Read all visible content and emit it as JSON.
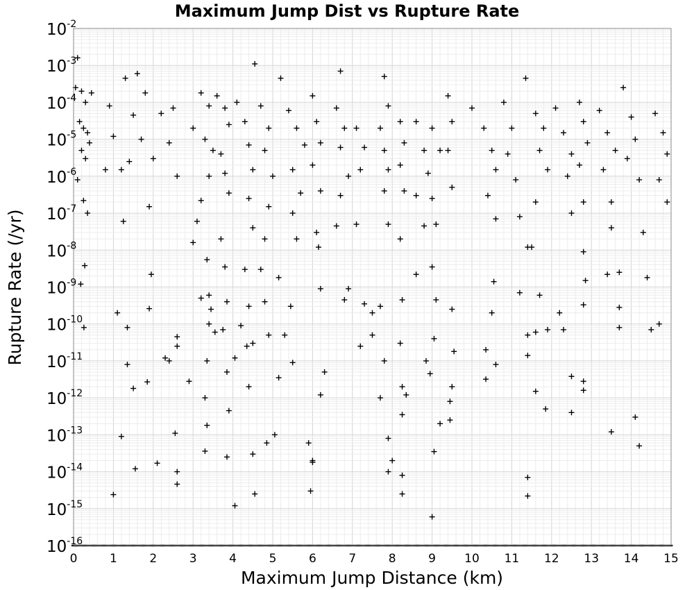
{
  "chart_data": {
    "type": "scatter",
    "title": "Maximum Jump Dist vs Rupture Rate",
    "xlabel": "Maximum Jump Distance (km)",
    "ylabel": "Rupture Rate (/yr)",
    "xlim": [
      0,
      15
    ],
    "ylim_exponents": [
      -16,
      -2
    ],
    "y_scale": "log",
    "grid": true,
    "marker": "plus",
    "marker_color": "#000000",
    "x_ticks": [
      "0",
      "1",
      "2",
      "3",
      "4",
      "5",
      "6",
      "7",
      "8",
      "9",
      "10",
      "11",
      "12",
      "13",
      "14",
      "15"
    ],
    "y_ticks": [
      {
        "base": "10",
        "exp": "-2"
      },
      {
        "base": "10",
        "exp": "-3"
      },
      {
        "base": "10",
        "exp": "-4"
      },
      {
        "base": "10",
        "exp": "-5"
      },
      {
        "base": "10",
        "exp": "-6"
      },
      {
        "base": "10",
        "exp": "-7"
      },
      {
        "base": "10",
        "exp": "-8"
      },
      {
        "base": "10",
        "exp": "-9"
      },
      {
        "base": "10",
        "exp": "-10"
      },
      {
        "base": "10",
        "exp": "-11"
      },
      {
        "base": "10",
        "exp": "-12"
      },
      {
        "base": "10",
        "exp": "-13"
      },
      {
        "base": "10",
        "exp": "-14"
      },
      {
        "base": "10",
        "exp": "-15"
      },
      {
        "base": "10",
        "exp": "-16"
      }
    ],
    "points": [
      [
        0.1,
        0.0016
      ],
      [
        0.05,
        0.00025
      ],
      [
        0.2,
        0.0002
      ],
      [
        0.3,
        0.0001
      ],
      [
        0.45,
        0.00018
      ],
      [
        0.15,
        3e-05
      ],
      [
        0.25,
        2e-05
      ],
      [
        0.35,
        1.5e-05
      ],
      [
        0.4,
        8e-06
      ],
      [
        0.2,
        5e-06
      ],
      [
        0.3,
        3e-06
      ],
      [
        0.1,
        8e-07
      ],
      [
        0.25,
        2.2e-07
      ],
      [
        0.35,
        1e-07
      ],
      [
        0.28,
        3.8e-09
      ],
      [
        0.18,
        1.2e-09
      ],
      [
        0.26,
        8e-11
      ],
      [
        0.9,
        8e-05
      ],
      [
        1.0,
        1.2e-05
      ],
      [
        0.8,
        1.5e-06
      ],
      [
        1.2,
        1.5e-06
      ],
      [
        1.3,
        0.00045
      ],
      [
        1.6,
        0.0006
      ],
      [
        1.8,
        0.00018
      ],
      [
        1.5,
        4.5e-05
      ],
      [
        1.7,
        1e-05
      ],
      [
        1.4,
        2.5e-06
      ],
      [
        1.9,
        1.5e-07
      ],
      [
        1.25,
        6e-08
      ],
      [
        1.1,
        2e-10
      ],
      [
        1.35,
        8e-11
      ],
      [
        1.35,
        8e-12
      ],
      [
        1.5,
        1.8e-12
      ],
      [
        1.2,
        9e-14
      ],
      [
        1.55,
        1.2e-14
      ],
      [
        1.0,
        2.4e-15
      ],
      [
        2.0,
        3e-06
      ],
      [
        2.2,
        5e-05
      ],
      [
        2.5,
        7e-05
      ],
      [
        2.4,
        8e-06
      ],
      [
        2.6,
        1e-06
      ],
      [
        1.95,
        2.2e-09
      ],
      [
        1.9,
        2.6e-10
      ],
      [
        1.85,
        2.7e-12
      ],
      [
        2.3,
        1.2e-11
      ],
      [
        2.1,
        1.7e-14
      ],
      [
        2.6,
        1e-14
      ],
      [
        2.4,
        1e-11
      ],
      [
        2.6,
        4.5e-11
      ],
      [
        2.6,
        2.5e-11
      ],
      [
        2.6,
        4.6e-15
      ],
      [
        2.55,
        1.1e-13
      ],
      [
        3.0,
        2e-05
      ],
      [
        3.2,
        0.00018
      ],
      [
        3.4,
        8e-05
      ],
      [
        3.3,
        1e-05
      ],
      [
        3.5,
        5e-06
      ],
      [
        3.4,
        1e-06
      ],
      [
        3.2,
        2.2e-07
      ],
      [
        3.1,
        6e-08
      ],
      [
        3.0,
        1.6e-08
      ],
      [
        3.35,
        5.5e-09
      ],
      [
        3.4,
        6e-10
      ],
      [
        3.4,
        1e-10
      ],
      [
        3.35,
        1e-11
      ],
      [
        3.3,
        1e-12
      ],
      [
        3.35,
        1.8e-13
      ],
      [
        3.3,
        3.6e-14
      ],
      [
        3.55,
        6e-11
      ],
      [
        3.45,
        2.5e-10
      ],
      [
        3.2,
        5e-10
      ],
      [
        2.9,
        2.8e-12
      ],
      [
        3.6,
        0.00015
      ],
      [
        3.8,
        7e-05
      ],
      [
        3.9,
        2.5e-05
      ],
      [
        3.7,
        4e-06
      ],
      [
        3.8,
        1.2e-06
      ],
      [
        3.9,
        3.5e-07
      ],
      [
        3.7,
        2e-08
      ],
      [
        3.8,
        3.5e-09
      ],
      [
        3.85,
        4e-10
      ],
      [
        3.75,
        7e-11
      ],
      [
        3.85,
        5e-12
      ],
      [
        3.9,
        4.5e-13
      ],
      [
        3.85,
        2.5e-14
      ],
      [
        4.05,
        1.2e-15
      ],
      [
        4.05,
        1.2e-11
      ],
      [
        4.1,
        0.0001
      ],
      [
        4.3,
        3e-05
      ],
      [
        4.4,
        7e-06
      ],
      [
        4.5,
        1.5e-06
      ],
      [
        4.4,
        2.5e-07
      ],
      [
        4.5,
        4e-08
      ],
      [
        4.3,
        3e-09
      ],
      [
        4.4,
        3e-10
      ],
      [
        4.5,
        3e-11
      ],
      [
        4.4,
        2e-12
      ],
      [
        4.5,
        3e-14
      ],
      [
        4.55,
        2.5e-15
      ],
      [
        4.55,
        0.0011
      ],
      [
        4.2,
        9e-11
      ],
      [
        4.35,
        2.5e-11
      ],
      [
        4.7,
        8e-05
      ],
      [
        4.9,
        2e-05
      ],
      [
        4.8,
        5e-06
      ],
      [
        5.0,
        1e-06
      ],
      [
        4.9,
        1.5e-07
      ],
      [
        4.8,
        2e-08
      ],
      [
        4.7,
        3e-09
      ],
      [
        4.8,
        4e-10
      ],
      [
        4.9,
        5e-11
      ],
      [
        5.15,
        3.5e-12
      ],
      [
        5.05,
        1e-13
      ],
      [
        4.85,
        6e-14
      ],
      [
        5.2,
        0.00045
      ],
      [
        5.15,
        1.8e-09
      ],
      [
        5.4,
        6e-05
      ],
      [
        5.6,
        2e-05
      ],
      [
        5.8,
        7e-06
      ],
      [
        5.5,
        1.5e-06
      ],
      [
        5.7,
        3.5e-07
      ],
      [
        5.5,
        1e-07
      ],
      [
        5.6,
        2e-08
      ],
      [
        5.45,
        3e-10
      ],
      [
        5.3,
        5e-11
      ],
      [
        5.5,
        9e-12
      ],
      [
        5.9,
        6e-14
      ],
      [
        5.95,
        3e-15
      ],
      [
        6.0,
        0.00015
      ],
      [
        6.1,
        3e-05
      ],
      [
        6.2,
        8e-06
      ],
      [
        6.0,
        2e-06
      ],
      [
        6.2,
        4e-07
      ],
      [
        6.1,
        3e-08
      ],
      [
        6.15,
        1.2e-08
      ],
      [
        6.2,
        9e-10
      ],
      [
        6.3,
        5e-12
      ],
      [
        6.2,
        1.2e-12
      ],
      [
        6.0,
        1.8e-14
      ],
      [
        6.0,
        2e-14
      ],
      [
        6.6,
        7e-05
      ],
      [
        6.8,
        2e-05
      ],
      [
        6.7,
        6e-06
      ],
      [
        6.9,
        1e-06
      ],
      [
        6.7,
        3e-07
      ],
      [
        6.6,
        4.5e-08
      ],
      [
        6.9,
        9e-10
      ],
      [
        6.8,
        4.5e-10
      ],
      [
        6.7,
        0.0007
      ],
      [
        7.1,
        2e-05
      ],
      [
        7.3,
        6e-06
      ],
      [
        7.2,
        1.5e-06
      ],
      [
        7.1,
        5e-08
      ],
      [
        7.2,
        2.5e-11
      ],
      [
        7.5,
        5e-11
      ],
      [
        7.5,
        2e-10
      ],
      [
        7.3,
        3.5e-10
      ],
      [
        7.8,
        0.0005
      ],
      [
        7.9,
        8e-05
      ],
      [
        7.7,
        2e-05
      ],
      [
        7.8,
        5e-06
      ],
      [
        7.9,
        1.5e-06
      ],
      [
        7.8,
        4e-07
      ],
      [
        7.9,
        5e-08
      ],
      [
        7.7,
        3e-10
      ],
      [
        7.8,
        1e-11
      ],
      [
        7.7,
        1e-12
      ],
      [
        7.9,
        8e-14
      ],
      [
        7.9,
        1e-14
      ],
      [
        8.0,
        2e-14
      ],
      [
        8.2,
        3e-05
      ],
      [
        8.3,
        8e-06
      ],
      [
        8.2,
        2e-06
      ],
      [
        8.3,
        4e-07
      ],
      [
        8.2,
        2e-08
      ],
      [
        8.25,
        4.5e-10
      ],
      [
        8.2,
        3e-11
      ],
      [
        8.25,
        2e-12
      ],
      [
        8.25,
        3.5e-13
      ],
      [
        8.25,
        8e-15
      ],
      [
        8.25,
        2.5e-15
      ],
      [
        8.35,
        1.2e-12
      ],
      [
        8.6,
        3e-05
      ],
      [
        8.8,
        5e-06
      ],
      [
        8.9,
        1.2e-06
      ],
      [
        8.6,
        3e-07
      ],
      [
        8.8,
        4.5e-08
      ],
      [
        8.6,
        2.2e-09
      ],
      [
        8.85,
        1e-11
      ],
      [
        8.95,
        4.5e-12
      ],
      [
        9.0,
        2e-05
      ],
      [
        9.2,
        5e-06
      ],
      [
        9.0,
        2.5e-07
      ],
      [
        9.1,
        5e-08
      ],
      [
        9.0,
        3.5e-09
      ],
      [
        9.1,
        4.5e-10
      ],
      [
        9.05,
        4e-11
      ],
      [
        9.2,
        2e-13
      ],
      [
        9.05,
        3.5e-14
      ],
      [
        9.0,
        6e-16
      ],
      [
        9.4,
        0.00015
      ],
      [
        9.5,
        3e-05
      ],
      [
        9.4,
        5e-06
      ],
      [
        9.5,
        5e-07
      ],
      [
        9.5,
        2.5e-10
      ],
      [
        9.45,
        8e-13
      ],
      [
        9.5,
        2e-12
      ],
      [
        9.45,
        2.5e-13
      ],
      [
        9.55,
        1.8e-11
      ],
      [
        10.0,
        7e-05
      ],
      [
        10.3,
        2e-05
      ],
      [
        10.5,
        5e-06
      ],
      [
        10.6,
        1.5e-06
      ],
      [
        10.4,
        3e-07
      ],
      [
        10.6,
        7e-08
      ],
      [
        10.55,
        1.4e-09
      ],
      [
        10.5,
        2e-10
      ],
      [
        10.35,
        2e-11
      ],
      [
        10.6,
        8e-12
      ],
      [
        10.35,
        3.2e-12
      ],
      [
        10.8,
        0.0001
      ],
      [
        11.0,
        2e-05
      ],
      [
        10.9,
        4e-06
      ],
      [
        11.1,
        8e-07
      ],
      [
        11.2,
        8e-08
      ],
      [
        11.35,
        0.00045
      ],
      [
        11.4,
        1.2e-08
      ],
      [
        11.5,
        1.2e-08
      ],
      [
        11.2,
        7e-10
      ],
      [
        11.4,
        5e-11
      ],
      [
        11.4,
        1.4e-11
      ],
      [
        11.4,
        7e-15
      ],
      [
        11.4,
        2.2e-15
      ],
      [
        11.6,
        5e-05
      ],
      [
        11.8,
        2e-05
      ],
      [
        11.7,
        5e-06
      ],
      [
        11.9,
        1.5e-06
      ],
      [
        11.6,
        2e-07
      ],
      [
        11.7,
        6e-10
      ],
      [
        11.6,
        6e-11
      ],
      [
        11.9,
        7e-11
      ],
      [
        11.6,
        1.5e-12
      ],
      [
        11.85,
        5e-13
      ],
      [
        12.1,
        7e-05
      ],
      [
        12.3,
        1.5e-05
      ],
      [
        12.5,
        4e-06
      ],
      [
        12.4,
        1e-06
      ],
      [
        12.5,
        1e-07
      ],
      [
        12.2,
        2e-10
      ],
      [
        12.3,
        7e-11
      ],
      [
        12.5,
        3.8e-12
      ],
      [
        12.5,
        4e-13
      ],
      [
        12.7,
        0.0001
      ],
      [
        12.8,
        3e-05
      ],
      [
        12.9,
        8e-06
      ],
      [
        12.7,
        2e-06
      ],
      [
        12.8,
        2e-07
      ],
      [
        12.8,
        9e-09
      ],
      [
        12.8,
        3.3e-10
      ],
      [
        12.8,
        2.8e-12
      ],
      [
        12.8,
        1.6e-12
      ],
      [
        12.85,
        1.5e-09
      ],
      [
        13.2,
        6e-05
      ],
      [
        13.4,
        1.5e-05
      ],
      [
        13.6,
        5e-06
      ],
      [
        13.3,
        1.5e-06
      ],
      [
        13.5,
        2e-07
      ],
      [
        13.5,
        4e-08
      ],
      [
        13.4,
        2.2e-09
      ],
      [
        13.7,
        2.5e-09
      ],
      [
        13.7,
        2.8e-10
      ],
      [
        13.7,
        8e-11
      ],
      [
        13.5,
        1.2e-13
      ],
      [
        13.8,
        0.00025
      ],
      [
        14.0,
        4e-05
      ],
      [
        14.1,
        1e-05
      ],
      [
        13.9,
        3e-06
      ],
      [
        14.2,
        8e-07
      ],
      [
        14.3,
        3e-08
      ],
      [
        14.4,
        1.8e-09
      ],
      [
        14.1,
        3e-13
      ],
      [
        14.2,
        5e-14
      ],
      [
        14.6,
        5e-05
      ],
      [
        14.8,
        1.5e-05
      ],
      [
        14.9,
        4e-06
      ],
      [
        14.7,
        8e-07
      ],
      [
        14.9,
        2e-07
      ],
      [
        14.7,
        1e-10
      ],
      [
        14.5,
        7e-11
      ]
    ]
  }
}
